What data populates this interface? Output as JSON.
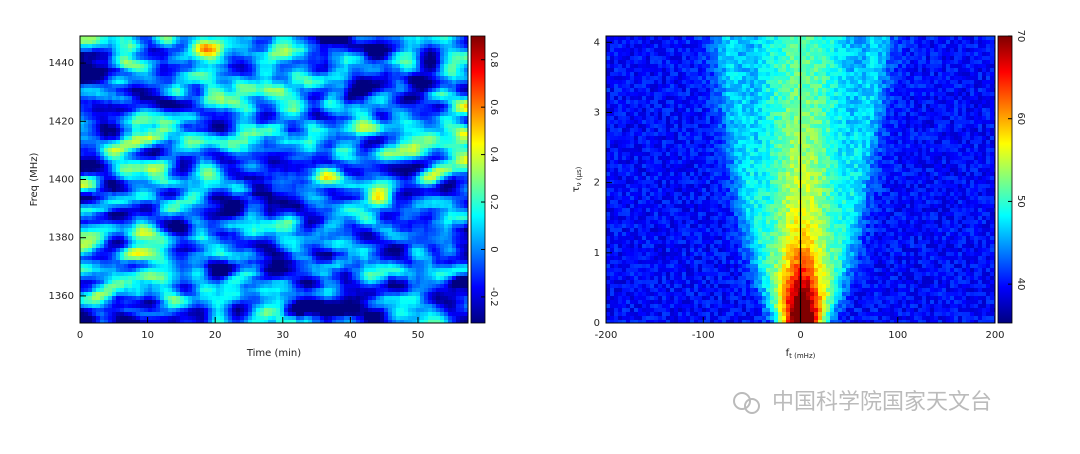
{
  "chart_data": [
    {
      "type": "heatmap",
      "colormap": "jet",
      "pattern": "scintles",
      "xlabel": "Time (min)",
      "ylabel": "Freq (MHz)",
      "xlim": [
        0,
        57.4
      ],
      "xticks": [
        0,
        10,
        20,
        30,
        40,
        50
      ],
      "ylim": [
        1350.7,
        1449.3
      ],
      "yticks": [
        1360,
        1380,
        1400,
        1420,
        1440
      ],
      "clim": [
        -0.31,
        0.9
      ],
      "cticks": [
        -0.2,
        0,
        0.2,
        0.4,
        0.6,
        0.8
      ]
    },
    {
      "type": "heatmap",
      "colormap": "jet",
      "pattern": "arcs",
      "xlabel": "f",
      "xlabel_sub": "t (mHz)",
      "ylabel": "τ",
      "ylabel_sub": "ν (μs)",
      "xlim": [
        -200,
        200
      ],
      "xticks": [
        -200,
        -100,
        0,
        100,
        200
      ],
      "ylim": [
        0,
        4.09
      ],
      "yticks": [
        0,
        1,
        2,
        3,
        4
      ],
      "clim": [
        35.3,
        70
      ],
      "cticks": [
        40,
        50,
        60,
        70
      ]
    }
  ],
  "watermark": "中国科学院国家天文台"
}
